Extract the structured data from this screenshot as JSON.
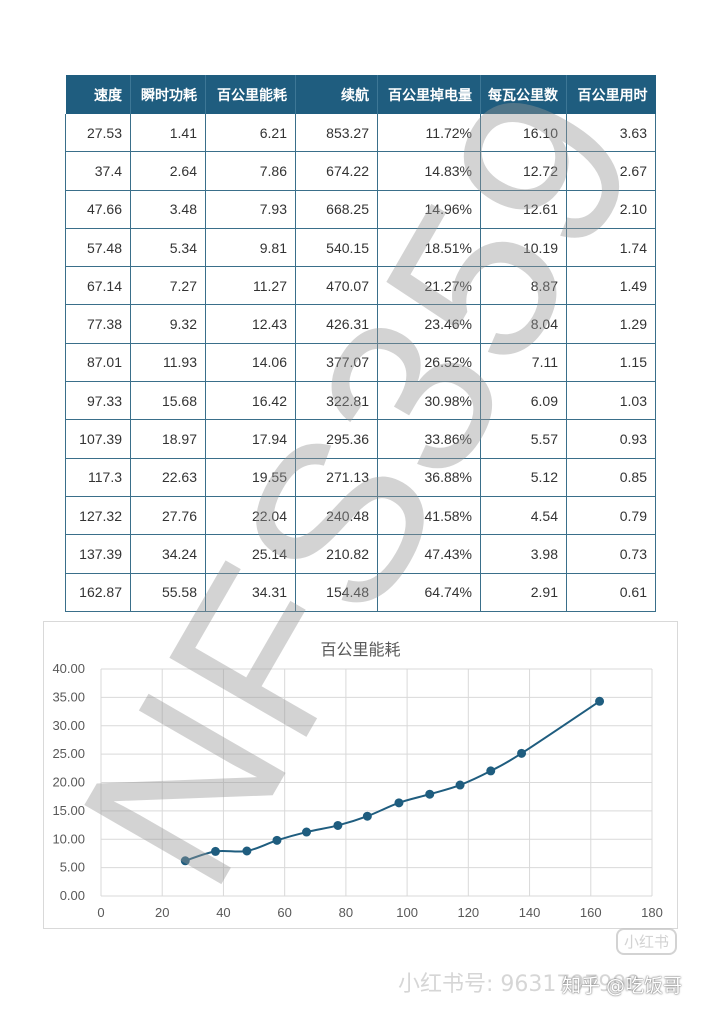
{
  "table": {
    "headers": [
      "速度",
      "瞬时功耗",
      "百公里能耗",
      "续航",
      "百公里掉电量",
      "每瓦公里数",
      "百公里用时"
    ],
    "rows": [
      [
        "27.53",
        "1.41",
        "6.21",
        "853.27",
        "11.72%",
        "16.10",
        "3.63"
      ],
      [
        "37.4",
        "2.64",
        "7.86",
        "674.22",
        "14.83%",
        "12.72",
        "2.67"
      ],
      [
        "47.66",
        "3.48",
        "7.93",
        "668.25",
        "14.96%",
        "12.61",
        "2.10"
      ],
      [
        "57.48",
        "5.34",
        "9.81",
        "540.15",
        "18.51%",
        "10.19",
        "1.74"
      ],
      [
        "67.14",
        "7.27",
        "11.27",
        "470.07",
        "21.27%",
        "8.87",
        "1.49"
      ],
      [
        "77.38",
        "9.32",
        "12.43",
        "426.31",
        "23.46%",
        "8.04",
        "1.29"
      ],
      [
        "87.01",
        "11.93",
        "14.06",
        "377.07",
        "26.52%",
        "7.11",
        "1.15"
      ],
      [
        "97.33",
        "15.68",
        "16.42",
        "322.81",
        "30.98%",
        "6.09",
        "1.03"
      ],
      [
        "107.39",
        "18.97",
        "17.94",
        "295.36",
        "33.86%",
        "5.57",
        "0.93"
      ],
      [
        "117.3",
        "22.63",
        "19.55",
        "271.13",
        "36.88%",
        "5.12",
        "0.85"
      ],
      [
        "127.32",
        "27.76",
        "22.04",
        "240.48",
        "41.58%",
        "4.54",
        "0.79"
      ],
      [
        "137.39",
        "34.24",
        "25.14",
        "210.82",
        "47.43%",
        "3.98",
        "0.73"
      ],
      [
        "162.87",
        "55.58",
        "34.31",
        "154.48",
        "64.74%",
        "2.91",
        "0.61"
      ]
    ]
  },
  "chart_data": {
    "type": "scatter",
    "title": "百公里能耗",
    "xlabel": "",
    "ylabel": "",
    "xlim": [
      0,
      180
    ],
    "ylim": [
      0,
      40
    ],
    "x_ticks": [
      "0",
      "20",
      "40",
      "60",
      "80",
      "100",
      "120",
      "140",
      "160",
      "180"
    ],
    "y_ticks": [
      "0.00",
      "5.00",
      "10.00",
      "15.00",
      "20.00",
      "25.00",
      "30.00",
      "35.00",
      "40.00"
    ],
    "grid": true,
    "legend": "none",
    "series": [
      {
        "x": [
          27.53,
          37.4,
          47.66,
          57.48,
          67.14,
          77.38,
          87.01,
          97.33,
          107.39,
          117.3,
          127.32,
          137.39,
          162.87
        ],
        "y": [
          6.21,
          7.86,
          7.93,
          9.81,
          11.27,
          12.43,
          14.06,
          16.42,
          17.94,
          19.55,
          22.04,
          25.14,
          34.31
        ],
        "color": "#1f5d7f",
        "marker": "circle",
        "line": "smooth"
      }
    ]
  },
  "colors": {
    "header_bg": "#1f5d7f",
    "series": "#1f5d7f",
    "grid": "#d9d9d9"
  },
  "watermarks": {
    "big_text": "NFS359",
    "xhs_text": "小红书号: 9631797999",
    "logo_text": "小红书",
    "zhihu_text": "知乎 @吃饭哥"
  }
}
